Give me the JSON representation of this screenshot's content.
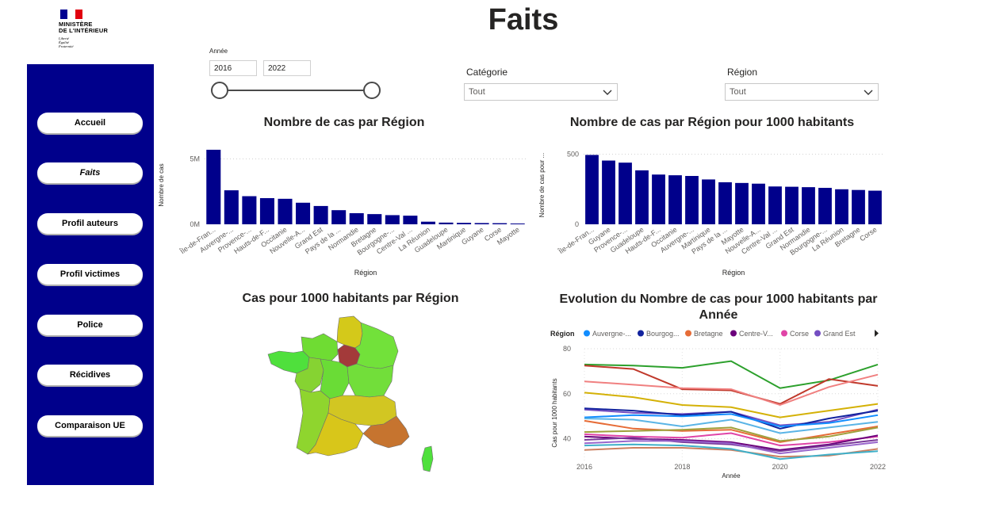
{
  "logo": {
    "title_lines": [
      "MINISTÈRE",
      "DE L'INTÉRIEUR"
    ],
    "motto_lines": [
      "Liberté",
      "Égalité",
      "Fraternité"
    ],
    "flag_colors": [
      "#000091",
      "#ffffff",
      "#e1000f"
    ]
  },
  "page": {
    "title": "Faits"
  },
  "nav": {
    "items": [
      {
        "label": "Accueil",
        "active": false
      },
      {
        "label": "Faits",
        "active": true
      },
      {
        "label": "Profil auteurs",
        "active": false
      },
      {
        "label": "Profil victimes",
        "active": false
      },
      {
        "label": "Police",
        "active": false
      },
      {
        "label": "Récidives",
        "active": false
      },
      {
        "label": "Comparaison UE",
        "active": false
      }
    ]
  },
  "filters": {
    "year": {
      "label": "Année",
      "from": "2016",
      "to": "2022"
    },
    "category": {
      "label": "Catégorie",
      "value": "Tout"
    },
    "region": {
      "label": "Région",
      "value": "Tout"
    }
  },
  "colors": {
    "sidebar": "#00008b",
    "bar": "#00008b"
  },
  "chart_data": [
    {
      "type": "bar",
      "title": "Nombre de cas par Région",
      "xlabel": "Région",
      "ylabel": "Nombre de cas",
      "yticks": [
        "5M",
        "0M"
      ],
      "ylim": [
        0,
        6000000
      ],
      "categories": [
        "Île-de-Fran...",
        "Auvergne-...",
        "Provence-...",
        "Hauts-de-F...",
        "Occitanie",
        "Nouvelle-A...",
        "Grand Est",
        "Pays de la ...",
        "Normandie",
        "Bretagne",
        "Bourgogne-...",
        "Centre-Val ...",
        "La Réunion",
        "Guadeloupe",
        "Martinique",
        "Guyane",
        "Corse",
        "Mayotte"
      ],
      "values": [
        5700000,
        2600000,
        2150000,
        2000000,
        1950000,
        1650000,
        1400000,
        1080000,
        850000,
        780000,
        700000,
        660000,
        200000,
        130000,
        110000,
        95000,
        85000,
        60000
      ]
    },
    {
      "type": "bar",
      "title": "Nombre de cas par Région pour 1000 habitants",
      "xlabel": "Région",
      "ylabel": "Nombre de cas pour ...",
      "yticks": [
        "500",
        "0"
      ],
      "ylim": [
        0,
        560
      ],
      "categories": [
        "Île-de-Fran...",
        "Guyane",
        "Provence-...",
        "Guadeloupe",
        "Hauts-de-F...",
        "Occitanie",
        "Auvergne-...",
        "Martinique",
        "Pays de la ...",
        "Mayotte",
        "Nouvelle-A...",
        "Centre-Val ...",
        "Grand Est",
        "Normandie",
        "Bourgogne-...",
        "La Réunion",
        "Bretagne",
        "Corse"
      ],
      "values": [
        495,
        455,
        440,
        385,
        355,
        350,
        345,
        320,
        300,
        295,
        290,
        270,
        268,
        265,
        260,
        250,
        245,
        240
      ]
    },
    {
      "type": "map",
      "title": "Cas pour 1000 habitants par Région",
      "regions": [
        {
          "name": "Hauts-de-France",
          "color": "#d4c91a"
        },
        {
          "name": "Normandie",
          "color": "#6fdc33"
        },
        {
          "name": "Île-de-France",
          "color": "#a33a3a"
        },
        {
          "name": "Grand Est",
          "color": "#72e13a"
        },
        {
          "name": "Bretagne",
          "color": "#4fe03c"
        },
        {
          "name": "Pays de la Loire",
          "color": "#86d332"
        },
        {
          "name": "Centre-Val de Loire",
          "color": "#6adc36"
        },
        {
          "name": "Bourgogne-Franche-Comté",
          "color": "#72de3a"
        },
        {
          "name": "Nouvelle-Aquitaine",
          "color": "#8fd52e"
        },
        {
          "name": "Auvergne-Rhône-Alpes",
          "color": "#d2c622"
        },
        {
          "name": "Occitanie",
          "color": "#d8c61a"
        },
        {
          "name": "Provence-Alpes-Côte d'Azur",
          "color": "#c6742f"
        },
        {
          "name": "Corse",
          "color": "#4fe03c"
        }
      ]
    },
    {
      "type": "line",
      "title": "Evolution du Nombre de cas pour 1000 habitants par Année",
      "xlabel": "Année",
      "ylabel": "Cas pour 1000 habitants",
      "x": [
        2016,
        2017,
        2018,
        2019,
        2020,
        2021,
        2022
      ],
      "xticks": [
        "2016",
        "2018",
        "2020",
        "2022"
      ],
      "yticks": [
        "80",
        "60",
        "40"
      ],
      "ylim": [
        30,
        80
      ],
      "legend_title": "Région",
      "legend": [
        {
          "name": "Auvergne-...",
          "color": "#118dff"
        },
        {
          "name": "Bourgog...",
          "color": "#12239e"
        },
        {
          "name": "Bretagne",
          "color": "#e66c37"
        },
        {
          "name": "Centre-V...",
          "color": "#6b007b"
        },
        {
          "name": "Corse",
          "color": "#e044a7"
        },
        {
          "name": "Grand Est",
          "color": "#744ec2"
        }
      ],
      "series": [
        {
          "color": "#2ca02c",
          "values": [
            73,
            72.5,
            71.5,
            74.5,
            62.5,
            66,
            73
          ]
        },
        {
          "color": "#c0392b",
          "values": [
            72.5,
            71,
            62,
            61.5,
            55.5,
            66.5,
            63.5
          ]
        },
        {
          "color": "#f08080",
          "values": [
            65.5,
            64,
            62.5,
            62,
            55,
            63,
            68.5
          ]
        },
        {
          "color": "#d4b106",
          "values": [
            60.5,
            58.5,
            55,
            54,
            49.5,
            52.5,
            55.5
          ]
        },
        {
          "color": "#744ec2",
          "values": [
            53,
            51.5,
            51,
            52,
            46,
            47.5,
            53
          ]
        },
        {
          "color": "#12239e",
          "values": [
            53.5,
            52.5,
            50.5,
            52,
            44.5,
            49,
            52.5
          ]
        },
        {
          "color": "#118dff",
          "values": [
            49.5,
            50.5,
            50,
            51,
            45.5,
            47,
            50.5
          ]
        },
        {
          "color": "#5ab4e6",
          "values": [
            49,
            48.5,
            45.5,
            48.5,
            42.5,
            45,
            47.5
          ]
        },
        {
          "color": "#e66c37",
          "values": [
            48,
            44.5,
            43.5,
            44,
            38.5,
            42,
            45.5
          ]
        },
        {
          "color": "#a0a03c",
          "values": [
            43,
            43.5,
            44,
            45,
            39,
            41,
            45
          ]
        },
        {
          "color": "#e044a7",
          "values": [
            42,
            41,
            40.5,
            42.5,
            37,
            38.5,
            41
          ]
        },
        {
          "color": "#6b007b",
          "values": [
            41,
            40,
            39.5,
            38.5,
            35,
            37.5,
            41.5
          ]
        },
        {
          "color": "#7a3a9a",
          "values": [
            39.5,
            40.5,
            38.5,
            37.5,
            34.5,
            37,
            39.5
          ]
        },
        {
          "color": "#cc8060",
          "values": [
            35,
            36,
            36,
            35,
            32,
            32.5,
            35.5
          ]
        },
        {
          "color": "#3fb0c9",
          "values": [
            37,
            37.5,
            37,
            35.5,
            31,
            33,
            34.5
          ]
        },
        {
          "color": "#9966cc",
          "values": [
            38,
            39,
            39,
            38,
            33.5,
            36,
            38.5
          ]
        }
      ]
    }
  ]
}
